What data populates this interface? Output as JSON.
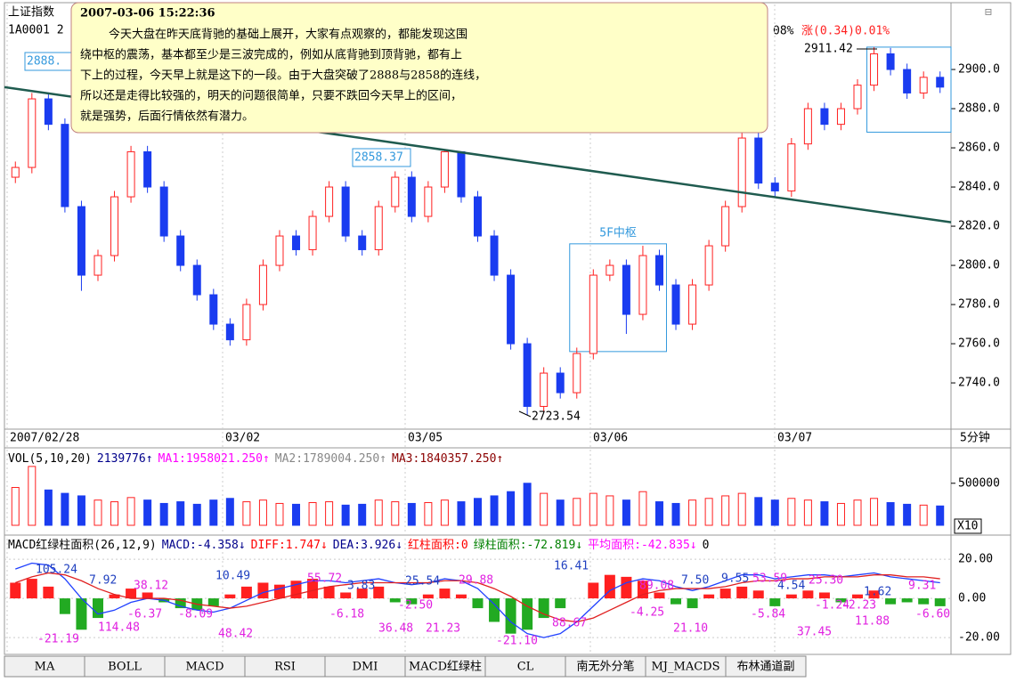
{
  "header": {
    "index_name": "上证指数",
    "code": "1A0001 2",
    "pct": "08%",
    "change": "涨(0.34)0.01%"
  },
  "tooltip": {
    "date": "2007-03-06 15:22:36",
    "lines": [
      "今天大盘在昨天底背驰的基础上展开，大家有点观察的，都能发现这围",
      "绕中枢的震荡，基本都至少是三波完成的，例如从底背驰到顶背驰，都有上",
      "下上的过程，今天早上就是这下的一段。由于大盘突破了2888与2858的连线，",
      "所以还是走得比较强的，明天的问题很简单，只要不跌回今天早上的区间，",
      "就是强势，后面行情依然有潜力。"
    ]
  },
  "chart_data": [
    {
      "type": "candlestick",
      "up_color": "#ff2020",
      "down_color": "#1a3cf0",
      "ylim": [
        2717.3,
        2933.2
      ],
      "yticks": [
        {
          "value": 2740,
          "label": "2740.0"
        },
        {
          "value": 2760,
          "label": "2760.0"
        },
        {
          "value": 2780,
          "label": "2780.0"
        },
        {
          "value": 2800,
          "label": "2800.0"
        },
        {
          "value": 2820,
          "label": "2820.0"
        },
        {
          "value": 2840,
          "label": "2840.0"
        },
        {
          "value": 2860,
          "label": "2860.0"
        },
        {
          "value": 2880,
          "label": "2880.0"
        },
        {
          "value": 2900,
          "label": "2900.0"
        }
      ],
      "dates": [
        "2007/02/28",
        "03/02",
        "03/05",
        "03/06",
        "03/07"
      ],
      "period": "5分钟",
      "ohlc": [
        [
          2845,
          2853,
          2842,
          2850
        ],
        [
          2850,
          2888,
          2847,
          2885
        ],
        [
          2885,
          2888,
          2869,
          2872
        ],
        [
          2872,
          2875,
          2827,
          2830
        ],
        [
          2830,
          2833,
          2787,
          2795
        ],
        [
          2795,
          2808,
          2792,
          2805
        ],
        [
          2805,
          2838,
          2802,
          2835
        ],
        [
          2835,
          2861,
          2832,
          2858
        ],
        [
          2858,
          2861,
          2837,
          2840
        ],
        [
          2840,
          2843,
          2812,
          2815
        ],
        [
          2815,
          2818,
          2797,
          2800
        ],
        [
          2800,
          2803,
          2782,
          2785
        ],
        [
          2785,
          2788,
          2767,
          2770
        ],
        [
          2770,
          2773,
          2759,
          2762
        ],
        [
          2762,
          2783,
          2759,
          2780
        ],
        [
          2780,
          2803,
          2777,
          2800
        ],
        [
          2800,
          2818,
          2797,
          2815
        ],
        [
          2815,
          2818,
          2805,
          2808
        ],
        [
          2808,
          2828,
          2805,
          2825
        ],
        [
          2825,
          2843,
          2822,
          2840
        ],
        [
          2840,
          2843,
          2812,
          2815
        ],
        [
          2815,
          2818,
          2805,
          2808
        ],
        [
          2808,
          2833,
          2805,
          2830
        ],
        [
          2830,
          2848,
          2827,
          2845
        ],
        [
          2845,
          2848,
          2822,
          2825
        ],
        [
          2825,
          2843,
          2822,
          2840
        ],
        [
          2840,
          2858.37,
          2837,
          2858
        ],
        [
          2858,
          2858,
          2832,
          2835
        ],
        [
          2835,
          2838,
          2812,
          2815
        ],
        [
          2815,
          2818,
          2792,
          2795
        ],
        [
          2795,
          2798,
          2757,
          2760
        ],
        [
          2760,
          2763,
          2723.54,
          2728
        ],
        [
          2728,
          2748,
          2725,
          2745
        ],
        [
          2745,
          2748,
          2732,
          2735
        ],
        [
          2735,
          2758,
          2732,
          2755
        ],
        [
          2755,
          2798,
          2752,
          2795
        ],
        [
          2795,
          2803,
          2792,
          2800
        ],
        [
          2800,
          2803,
          2765,
          2775
        ],
        [
          2775,
          2810,
          2772,
          2805
        ],
        [
          2805,
          2808,
          2787,
          2790
        ],
        [
          2790,
          2793,
          2767,
          2770
        ],
        [
          2770,
          2793,
          2767,
          2790
        ],
        [
          2790,
          2813,
          2787,
          2810
        ],
        [
          2810,
          2833,
          2807,
          2830
        ],
        [
          2830,
          2868,
          2827,
          2865
        ],
        [
          2865,
          2868,
          2839,
          2842
        ],
        [
          2842,
          2845,
          2835,
          2838
        ],
        [
          2838,
          2865,
          2835,
          2862
        ],
        [
          2862,
          2883,
          2859,
          2880
        ],
        [
          2880,
          2883,
          2869,
          2872
        ],
        [
          2872,
          2883,
          2869,
          2880
        ],
        [
          2880,
          2895,
          2877,
          2892
        ],
        [
          2892,
          2911.42,
          2889,
          2908
        ],
        [
          2908,
          2911,
          2897,
          2900
        ],
        [
          2900,
          2903,
          2885,
          2888
        ],
        [
          2888,
          2899,
          2885,
          2896
        ],
        [
          2896,
          2899,
          2888,
          2891
        ]
      ],
      "trendline": [
        2891,
        2822
      ],
      "trend_color": "#1f5b4f",
      "annotations": [
        "2888.",
        "2858.37",
        "2723.54",
        "2911.42"
      ],
      "zones": [
        {
          "label": "5F中枢",
          "low": 2756,
          "high": 2811
        },
        {
          "low": 2868,
          "high": 2911.42
        }
      ]
    },
    {
      "type": "bar",
      "header": [
        {
          "text": "VOL(5,10,20)",
          "color": "#000000"
        },
        {
          "text": "2139776↑",
          "color": "#00008b"
        },
        {
          "text": "MA1:1958021.250↑",
          "color": "#ff00ff"
        },
        {
          "text": "MA2:1789004.250↑",
          "color": "#888888"
        },
        {
          "text": "MA3:1840357.250↑",
          "color": "#8b0000"
        }
      ],
      "ylim": [
        0,
        900000
      ],
      "yticks": [
        500000
      ],
      "unit": "X10",
      "values": [
        450000,
        700000,
        420000,
        380000,
        350000,
        300000,
        280000,
        330000,
        300000,
        260000,
        280000,
        250000,
        300000,
        320000,
        280000,
        300000,
        260000,
        250000,
        270000,
        280000,
        240000,
        250000,
        300000,
        280000,
        260000,
        270000,
        300000,
        280000,
        320000,
        350000,
        400000,
        500000,
        380000,
        300000,
        320000,
        380000,
        350000,
        300000,
        400000,
        280000,
        260000,
        300000,
        320000,
        350000,
        380000,
        330000,
        300000,
        320000,
        300000,
        280000,
        260000,
        300000,
        320000,
        270000,
        250000,
        240000,
        230000
      ]
    },
    {
      "type": "macd",
      "header": [
        {
          "text": "MACD红绿柱面积(26,12,9)",
          "color": "#000000"
        },
        {
          "text": "MACD:-4.358↓",
          "color": "#00008b"
        },
        {
          "text": "DIFF:1.747↓",
          "color": "#ff0000"
        },
        {
          "text": "DEA:3.926↓",
          "color": "#00008b"
        },
        {
          "text": "红柱面积:0",
          "color": "#ff0000"
        },
        {
          "text": "绿柱面积:-72.819↓",
          "color": "#008000"
        },
        {
          "text": "平均面积:-42.835↓",
          "color": "#ff00ff"
        },
        {
          "text": "0",
          "color": "#000000"
        }
      ],
      "ylim": [
        -28.6,
        31.4
      ],
      "yticks": [
        {
          "value": 20,
          "label": "20.00"
        },
        {
          "value": 0,
          "label": "0.00"
        },
        {
          "value": -20,
          "label": "-20.00"
        }
      ],
      "pos_color": "#ff2020",
      "neg_color": "#22aa22",
      "values": [
        8,
        10,
        6,
        -8,
        -16,
        -10,
        2,
        5,
        3,
        -2,
        -5,
        -6,
        -4,
        2,
        6,
        8,
        7,
        9,
        10,
        6,
        3,
        5,
        6,
        -2,
        -3,
        2,
        5,
        2,
        -5,
        -12,
        -18,
        -16,
        -10,
        -5,
        0,
        8,
        12,
        11,
        9,
        3,
        -3,
        -5,
        2,
        5,
        6,
        4,
        -4,
        2,
        4,
        3,
        -2,
        2,
        4,
        -3,
        -2,
        -3,
        -4
      ],
      "series": [
        {
          "name": "DIFF",
          "color": "#2040ff",
          "values": [
            15,
            18,
            17,
            10,
            0,
            -8,
            -6,
            -2,
            0,
            -1,
            -4,
            -6,
            -7,
            -5,
            -1,
            3,
            5,
            7,
            9,
            9,
            8,
            9,
            10,
            8,
            7,
            8,
            10,
            9,
            5,
            -3,
            -12,
            -18,
            -20,
            -18,
            -12,
            -4,
            4,
            8,
            10,
            9,
            6,
            4,
            6,
            9,
            12,
            12,
            10,
            11,
            12,
            12,
            11,
            12,
            13,
            11,
            10,
            9,
            8
          ]
        },
        {
          "name": "DEA",
          "color": "#e02020",
          "values": [
            8,
            11,
            13,
            12,
            9,
            5,
            2,
            0,
            0,
            0,
            -1,
            -3,
            -4,
            -5,
            -4,
            -2,
            0,
            2,
            4,
            6,
            7,
            8,
            8,
            8,
            8,
            8,
            9,
            9,
            8,
            5,
            1,
            -4,
            -8,
            -11,
            -12,
            -10,
            -6,
            -2,
            2,
            4,
            5,
            5,
            5,
            6,
            8,
            9,
            9,
            10,
            10,
            11,
            11,
            11,
            12,
            12,
            11,
            11,
            10
          ]
        }
      ],
      "labels_blue": [
        "105.24",
        "7.92",
        "10.49",
        "3.83",
        "25.54",
        "16.41",
        "7.50",
        "9.55",
        "4.54",
        "1.62"
      ],
      "labels_magenta": [
        "-21.19",
        "114.48",
        "38.12",
        "-6.37",
        "-8.09",
        "48.42",
        "55.72",
        "-6.18",
        "36.48",
        "21.23",
        "-2.50",
        "29.88",
        "-21.10",
        "88.67",
        "89.08",
        "-4.25",
        "21.10",
        "53.59",
        "-5.84",
        "25.30",
        "37.45",
        "-1.24",
        "-2.23",
        "11.88",
        "9.31",
        "-6.60"
      ]
    }
  ],
  "tabs": [
    "MA",
    "BOLL",
    "MACD",
    "RSI",
    "DMI",
    "MACD红绿柱",
    "CL",
    "南无外分笔",
    "MJ_MACDS",
    "布林通道副"
  ]
}
